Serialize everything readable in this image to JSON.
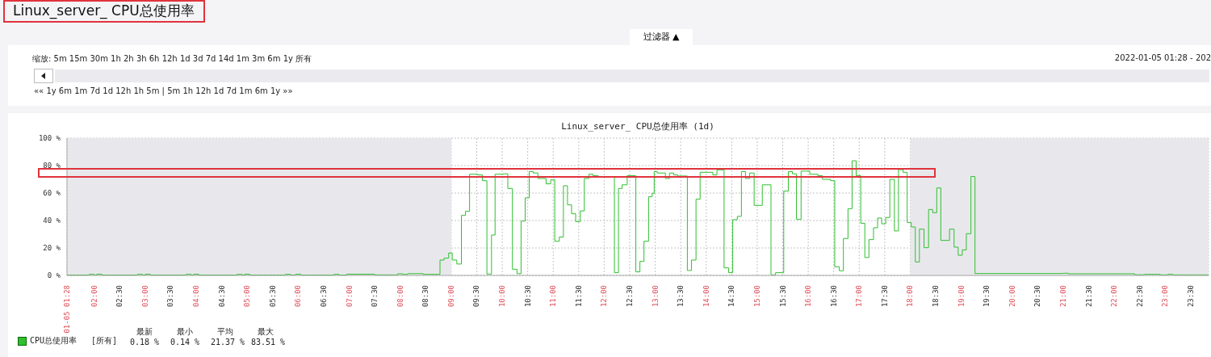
{
  "chart_data": {
    "type": "step",
    "title": "Linux_server_ CPU总使用率 (1d)",
    "annotations": [
      "Linux_server_ CPU总使用率",
      "过滤器 ▲",
      "缩放: 5m 15m 30m 1h 2h 3h 6h 12h 1d 3d 7d 14d 1m 3m 6m 1y 所有",
      "2022-01-05 01:28 - 202",
      "«« 1y 6m 1m 7d 1d 12h 1h 5m | 5m 1h 12h 1d 7d 1m 6m 1y »»",
      "最新",
      "最小",
      "平均",
      "最大",
      "[所有]",
      "0.18 %",
      "0.14 %",
      "21.37 %",
      "83.51 %"
    ],
    "x": [
      1.4667,
      1.9,
      2.0,
      2.05,
      2.15,
      2.85,
      2.95,
      3.0,
      3.1,
      3.8,
      3.9,
      3.95,
      4.05,
      4.8,
      4.9,
      4.95,
      5.05,
      5.75,
      5.85,
      5.95,
      6.05,
      6.7,
      6.8,
      6.95,
      7.5,
      7.95,
      8.05,
      8.15,
      8.45,
      8.78,
      8.86,
      8.95,
      9.02,
      9.11,
      9.2,
      9.28,
      9.36,
      9.52,
      9.61,
      9.7,
      9.79,
      9.86,
      10.02,
      10.11,
      10.2,
      10.29,
      10.37,
      10.45,
      10.53,
      10.61,
      10.7,
      10.86,
      10.95,
      11.03,
      11.12,
      11.2,
      11.28,
      11.36,
      11.44,
      11.53,
      11.61,
      11.7,
      11.78,
      11.88,
      12.2,
      12.28,
      12.35,
      12.45,
      12.62,
      12.7,
      12.78,
      12.87,
      12.94,
      12.98,
      13.04,
      13.2,
      13.28,
      13.36,
      13.44,
      13.63,
      13.71,
      13.8,
      13.88,
      14.13,
      14.21,
      14.35,
      14.44,
      14.52,
      14.61,
      14.69,
      14.77,
      14.85,
      14.94,
      15.1,
      15.27,
      15.36,
      15.52,
      15.61,
      15.69,
      15.77,
      15.86,
      16.03,
      16.19,
      16.28,
      16.44,
      16.52,
      16.61,
      16.69,
      16.78,
      16.86,
      16.94,
      17.03,
      17.11,
      17.19,
      17.28,
      17.36,
      17.44,
      17.52,
      17.6,
      17.69,
      17.77,
      17.86,
      17.94,
      18.02,
      18.1,
      18.18,
      18.27,
      18.36,
      18.44,
      18.52,
      18.6,
      18.77,
      18.86,
      18.94,
      19.02,
      19.1,
      19.19,
      19.27,
      21.0,
      21.1,
      22.4,
      22.6,
      22.9,
      23.05,
      23.15,
      23.85
    ],
    "series": [
      {
        "name": "CPU总使用率",
        "color": "#2fbf2f",
        "values": [
          0.3,
          0.8,
          0.3,
          0.9,
          0.3,
          0.8,
          0.3,
          0.9,
          0.3,
          0.8,
          0.3,
          0.9,
          0.3,
          0.8,
          0.3,
          0.9,
          0.3,
          0.8,
          0.3,
          0.9,
          0.3,
          0.8,
          0.3,
          0.9,
          0.4,
          1.2,
          0.8,
          1.3,
          0.8,
          11.2,
          12.6,
          16.3,
          11.2,
          8.3,
          43.7,
          46.7,
          73.7,
          73.2,
          69,
          1,
          29.4,
          73.7,
          74,
          63.3,
          4.5,
          1.3,
          39.6,
          56.5,
          75.6,
          74.6,
          70.6,
          66.7,
          69.6,
          24.9,
          28,
          65.3,
          51.4,
          44.9,
          39.2,
          47,
          70.6,
          73.7,
          72.7,
          71.6,
          2,
          63.3,
          66,
          72.7,
          2.6,
          10.2,
          24.9,
          57.3,
          59.8,
          75.6,
          74.6,
          70.6,
          74.6,
          73.2,
          72.4,
          3.6,
          11.2,
          55.5,
          75.1,
          73.2,
          76.9,
          5.5,
          2,
          40.6,
          43,
          75.6,
          70.6,
          74.6,
          51,
          66,
          0.4,
          2,
          61.4,
          75.6,
          74,
          40.8,
          76,
          73.7,
          72.6,
          70,
          69,
          6.3,
          3.4,
          26.9,
          48.6,
          83.5,
          72.7,
          38,
          13,
          26.1,
          34.7,
          41.8,
          37.6,
          42.2,
          70,
          32.4,
          77.1,
          75.1,
          38.6,
          35.3,
          9.8,
          33.7,
          20.2,
          48,
          45.7,
          63.7,
          25.5,
          33.7,
          20.6,
          14.7,
          18.6,
          30.4,
          72,
          1.4,
          1.6,
          1.2,
          0.5,
          0.8,
          0.4,
          0.8,
          0.4,
          0.2
        ]
      }
    ],
    "xlim": [
      1.4667,
      23.85
    ],
    "xticks": [
      {
        "value": 1.4667,
        "label": "01-05 01:28"
      },
      {
        "value": 2,
        "label": "02:00"
      },
      {
        "value": 2.5,
        "label": "02:30"
      },
      {
        "value": 3,
        "label": "03:00"
      },
      {
        "value": 3.5,
        "label": "03:30"
      },
      {
        "value": 4,
        "label": "04:00"
      },
      {
        "value": 4.5,
        "label": "04:30"
      },
      {
        "value": 5,
        "label": "05:00"
      },
      {
        "value": 5.5,
        "label": "05:30"
      },
      {
        "value": 6,
        "label": "06:00"
      },
      {
        "value": 6.5,
        "label": "06:30"
      },
      {
        "value": 7,
        "label": "07:00"
      },
      {
        "value": 7.5,
        "label": "07:30"
      },
      {
        "value": 8,
        "label": "08:00"
      },
      {
        "value": 8.5,
        "label": "08:30"
      },
      {
        "value": 9,
        "label": "09:00"
      },
      {
        "value": 9.5,
        "label": "09:30"
      },
      {
        "value": 10,
        "label": "10:00"
      },
      {
        "value": 10.5,
        "label": "10:30"
      },
      {
        "value": 11,
        "label": "11:00"
      },
      {
        "value": 11.5,
        "label": "11:30"
      },
      {
        "value": 12,
        "label": "12:00"
      },
      {
        "value": 12.5,
        "label": "12:30"
      },
      {
        "value": 13,
        "label": "13:00"
      },
      {
        "value": 13.5,
        "label": "13:30"
      },
      {
        "value": 14,
        "label": "14:00"
      },
      {
        "value": 14.5,
        "label": "14:30"
      },
      {
        "value": 15,
        "label": "15:00"
      },
      {
        "value": 15.5,
        "label": "15:30"
      },
      {
        "value": 16,
        "label": "16:00"
      },
      {
        "value": 16.5,
        "label": "16:30"
      },
      {
        "value": 17,
        "label": "17:00"
      },
      {
        "value": 17.5,
        "label": "17:30"
      },
      {
        "value": 18,
        "label": "18:00"
      },
      {
        "value": 18.5,
        "label": "18:30"
      },
      {
        "value": 19,
        "label": "19:00"
      },
      {
        "value": 19.5,
        "label": "19:30"
      },
      {
        "value": 20,
        "label": "20:00"
      },
      {
        "value": 20.5,
        "label": "20:30"
      },
      {
        "value": 21,
        "label": "21:00"
      },
      {
        "value": 21.5,
        "label": "21:30"
      },
      {
        "value": 22,
        "label": "22:00"
      },
      {
        "value": 22.5,
        "label": "22:30"
      },
      {
        "value": 23,
        "label": "23:00"
      },
      {
        "value": 23.5,
        "label": "23:30"
      }
    ],
    "ylim": [
      0,
      100
    ],
    "yticks": [
      {
        "value": 0,
        "label": "0 %"
      },
      {
        "value": 20,
        "label": "20 %"
      },
      {
        "value": 40,
        "label": "40 %"
      },
      {
        "value": 60,
        "label": "60 %"
      },
      {
        "value": 80,
        "label": "80 %"
      },
      {
        "value": 100,
        "label": "100 %"
      }
    ],
    "bands": [
      {
        "axis": "x",
        "from": 1.4667,
        "to": 9,
        "color": "#e8e8ec"
      },
      {
        "axis": "x",
        "from": 18,
        "to": 23.85,
        "color": "#e8e8ec"
      }
    ],
    "grid": true,
    "legend": "bottom left",
    "marker": "none"
  }
}
